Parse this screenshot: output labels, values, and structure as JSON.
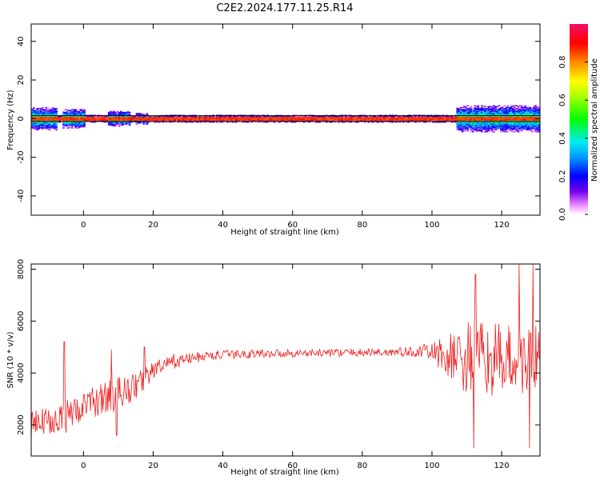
{
  "title": "C2E2.2024.177.11.25.R14",
  "chart_data": [
    {
      "type": "heatmap",
      "xlabel": "Height of straight line (km)",
      "ylabel": "Frequency (Hz)",
      "xlim": [
        -15,
        131
      ],
      "ylim": [
        -50,
        49
      ],
      "x_ticks": [
        0,
        20,
        40,
        60,
        80,
        100,
        120
      ],
      "y_ticks": [
        -40,
        -20,
        0,
        20,
        40
      ],
      "colorbar": {
        "label": "Normalized spectral amplitude",
        "range": [
          0,
          1
        ],
        "ticks": [
          "0.0",
          "0.2",
          "0.4",
          "0.6",
          "0.8"
        ]
      },
      "reference_lines_hz": [
        1.5,
        -1.5
      ],
      "band_center_hz": 0,
      "band_halfwidth_hz": 2,
      "band_peak_amplitude": 0.9,
      "spread_regions": [
        {
          "x": [
            -15,
            -8
          ],
          "halfwidth_hz": 6
        },
        {
          "x": [
            -6,
            0
          ],
          "halfwidth_hz": 5
        },
        {
          "x": [
            7,
            13
          ],
          "halfwidth_hz": 4
        },
        {
          "x": [
            15,
            18
          ],
          "halfwidth_hz": 3
        },
        {
          "x": [
            107,
            131
          ],
          "halfwidth_hz": 7
        }
      ],
      "grid": false
    },
    {
      "type": "line",
      "xlabel": "Height of straight line (km)",
      "ylabel": "SNR (10 * v/v)",
      "xlim": [
        -15,
        131
      ],
      "ylim": [
        800,
        8200
      ],
      "x_ticks": [
        0,
        20,
        40,
        60,
        80,
        100,
        120
      ],
      "y_ticks": [
        2000,
        4000,
        6000,
        8000
      ],
      "color": "#ee2222",
      "grid": false,
      "trend": {
        "x": [
          -15,
          -10,
          -5,
          0,
          5,
          10,
          15,
          20,
          25,
          30,
          35,
          40,
          45,
          50,
          55,
          60,
          65,
          70,
          75,
          80,
          85,
          90,
          95,
          100,
          105,
          110,
          115,
          120,
          125,
          131
        ],
        "y": [
          1900,
          2200,
          2400,
          2700,
          3000,
          3200,
          3500,
          4100,
          4400,
          4550,
          4650,
          4700,
          4720,
          4750,
          4760,
          4760,
          4770,
          4780,
          4780,
          4790,
          4800,
          4800,
          4810,
          4820,
          4600,
          4500,
          4500,
          4500,
          4500,
          4500
        ]
      },
      "noise_amplitude": {
        "x": [
          -15,
          0,
          10,
          20,
          30,
          40,
          60,
          80,
          95,
          100,
          105,
          110,
          120,
          131
        ],
        "y": [
          600,
          550,
          700,
          350,
          220,
          180,
          150,
          150,
          200,
          350,
          900,
          1500,
          1400,
          1300
        ]
      },
      "spikes": [
        {
          "x": -5.5,
          "y": 5200
        },
        {
          "x": -5,
          "y": 1700
        },
        {
          "x": 8,
          "y": 4900
        },
        {
          "x": 9.5,
          "y": 1600
        },
        {
          "x": 17.5,
          "y": 5000
        },
        {
          "x": 112,
          "y": 1100
        },
        {
          "x": 112.5,
          "y": 7800
        },
        {
          "x": 125,
          "y": 8200
        },
        {
          "x": 128,
          "y": 1100
        },
        {
          "x": 129,
          "y": 8200
        }
      ]
    }
  ]
}
